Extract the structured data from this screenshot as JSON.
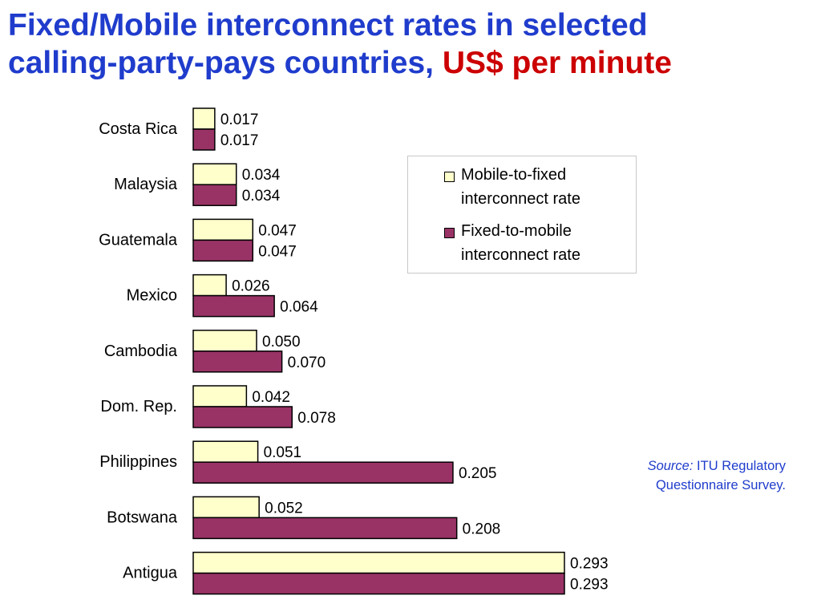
{
  "title": {
    "line1": "Fixed/Mobile interconnect rates in selected",
    "line2_main": "calling-party-pays countries,",
    "line2_accent": "US$ per minute"
  },
  "colors": {
    "title": "#1f3ccc",
    "title_accent": "#cc0000",
    "mobile_to_fixed": "#ffffcc",
    "fixed_to_mobile": "#993366",
    "source_text": "#1f3ccc"
  },
  "legend": {
    "position": "right",
    "items": [
      {
        "line1": "Mobile-to-fixed",
        "line2": "interconnect rate"
      },
      {
        "line1": "Fixed-to-mobile",
        "line2": "interconnect rate"
      }
    ]
  },
  "source": {
    "label": "Source:",
    "line1": "ITU Regulatory",
    "line2": "Questionnaire Survey."
  },
  "chart_data": {
    "type": "bar",
    "orientation": "horizontal",
    "categories": [
      "Costa Rica",
      "Malaysia",
      "Guatemala",
      "Mexico",
      "Cambodia",
      "Dom. Rep.",
      "Philippines",
      "Botswana",
      "Antigua"
    ],
    "series": [
      {
        "name": "Mobile-to-fixed interconnect rate",
        "values": [
          0.017,
          0.034,
          0.047,
          0.026,
          0.05,
          0.042,
          0.051,
          0.052,
          0.293
        ],
        "labels": [
          "0.017",
          "0.034",
          "0.047",
          "0.026",
          "0.050",
          "0.042",
          "0.051",
          "0.052",
          "0.293"
        ]
      },
      {
        "name": "Fixed-to-mobile interconnect rate",
        "values": [
          0.017,
          0.034,
          0.047,
          0.064,
          0.07,
          0.078,
          0.205,
          0.208,
          0.293
        ],
        "labels": [
          "0.017",
          "0.034",
          "0.047",
          "0.064",
          "0.070",
          "0.078",
          "0.205",
          "0.208",
          "0.293"
        ]
      }
    ],
    "xlim": [
      0,
      0.293
    ],
    "grid": false,
    "legend_position": "right"
  }
}
